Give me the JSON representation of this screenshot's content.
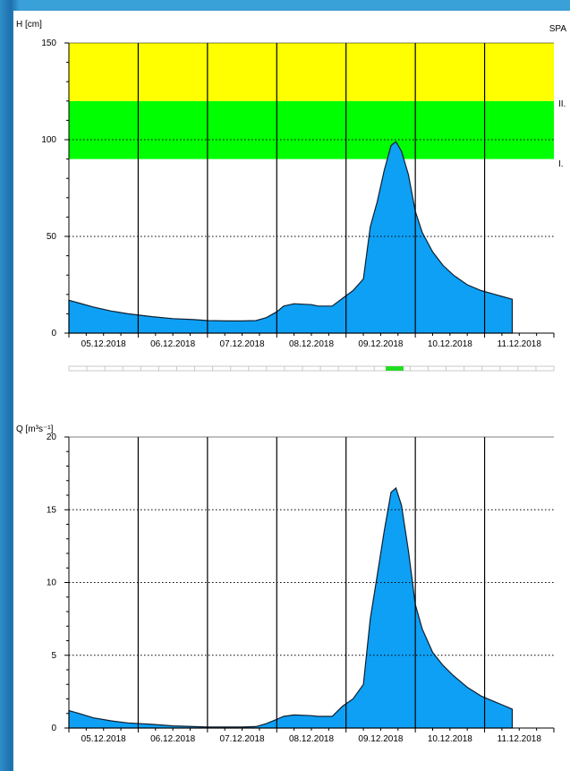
{
  "chart_data": [
    {
      "type": "area",
      "ylabel": "H [cm]",
      "corner_label": "SPA",
      "ylim": [
        0,
        150
      ],
      "yticks": [
        0,
        50,
        100,
        150
      ],
      "x_categories": [
        "05.12.2018",
        "06.12.2018",
        "07.12.2018",
        "08.12.2018",
        "09.12.2018",
        "10.12.2018",
        "11.12.2018"
      ],
      "xlim_days": [
        0,
        7
      ],
      "grid": true,
      "bands": [
        {
          "from": 90,
          "to": 120,
          "color": "#00ff00",
          "label": "I."
        },
        {
          "from": 120,
          "to": 150,
          "color": "#ffff00",
          "label": "II."
        }
      ],
      "series": [
        {
          "color": "#0ea0f5",
          "points": [
            [
              0,
              17
            ],
            [
              0.15,
              15.5
            ],
            [
              0.35,
              13.5
            ],
            [
              0.6,
              11.5
            ],
            [
              0.85,
              10
            ],
            [
              1.2,
              8.5
            ],
            [
              1.5,
              7.5
            ],
            [
              1.8,
              7
            ],
            [
              2,
              6.5
            ],
            [
              2.3,
              6.3
            ],
            [
              2.5,
              6.3
            ],
            [
              2.7,
              6.5
            ],
            [
              2.85,
              8
            ],
            [
              3.0,
              11
            ],
            [
              3.1,
              14
            ],
            [
              3.25,
              15.2
            ],
            [
              3.5,
              14.7
            ],
            [
              3.6,
              14
            ],
            [
              3.8,
              14
            ],
            [
              3.95,
              18
            ],
            [
              4.1,
              22
            ],
            [
              4.25,
              28
            ],
            [
              4.35,
              55
            ],
            [
              4.45,
              68
            ],
            [
              4.55,
              84
            ],
            [
              4.65,
              97
            ],
            [
              4.72,
              99
            ],
            [
              4.8,
              94
            ],
            [
              4.9,
              82
            ],
            [
              5.0,
              63
            ],
            [
              5.1,
              52
            ],
            [
              5.25,
              42
            ],
            [
              5.4,
              35
            ],
            [
              5.55,
              30
            ],
            [
              5.75,
              25
            ],
            [
              5.95,
              22
            ],
            [
              6.15,
              20
            ],
            [
              6.25,
              19
            ],
            [
              6.4,
              17.5
            ]
          ]
        }
      ]
    },
    {
      "type": "area",
      "ylabel": "Q [m³s⁻¹]",
      "ylim": [
        0,
        20
      ],
      "yticks": [
        0,
        5,
        10,
        15,
        20
      ],
      "x_categories": [
        "05.12.2018",
        "06.12.2018",
        "07.12.2018",
        "08.12.2018",
        "09.12.2018",
        "10.12.2018",
        "11.12.2018"
      ],
      "xlim_days": [
        0,
        7
      ],
      "grid": true,
      "series": [
        {
          "color": "#0ea0f5",
          "points": [
            [
              0,
              1.2
            ],
            [
              0.15,
              1.0
            ],
            [
              0.35,
              0.7
            ],
            [
              0.6,
              0.5
            ],
            [
              0.85,
              0.35
            ],
            [
              1.2,
              0.25
            ],
            [
              1.5,
              0.15
            ],
            [
              1.8,
              0.1
            ],
            [
              2,
              0.07
            ],
            [
              2.5,
              0.07
            ],
            [
              2.7,
              0.1
            ],
            [
              2.85,
              0.3
            ],
            [
              3.0,
              0.6
            ],
            [
              3.1,
              0.8
            ],
            [
              3.25,
              0.9
            ],
            [
              3.5,
              0.85
            ],
            [
              3.6,
              0.8
            ],
            [
              3.8,
              0.8
            ],
            [
              3.95,
              1.5
            ],
            [
              4.1,
              2.0
            ],
            [
              4.25,
              3.0
            ],
            [
              4.35,
              7.5
            ],
            [
              4.45,
              10.5
            ],
            [
              4.55,
              13.5
            ],
            [
              4.65,
              16.2
            ],
            [
              4.72,
              16.5
            ],
            [
              4.8,
              15.3
            ],
            [
              4.9,
              12.2
            ],
            [
              5.0,
              8.5
            ],
            [
              5.1,
              6.8
            ],
            [
              5.25,
              5.2
            ],
            [
              5.4,
              4.3
            ],
            [
              5.55,
              3.6
            ],
            [
              5.75,
              2.8
            ],
            [
              5.95,
              2.2
            ],
            [
              6.15,
              1.8
            ],
            [
              6.25,
              1.6
            ],
            [
              6.4,
              1.3
            ]
          ]
        }
      ]
    }
  ]
}
